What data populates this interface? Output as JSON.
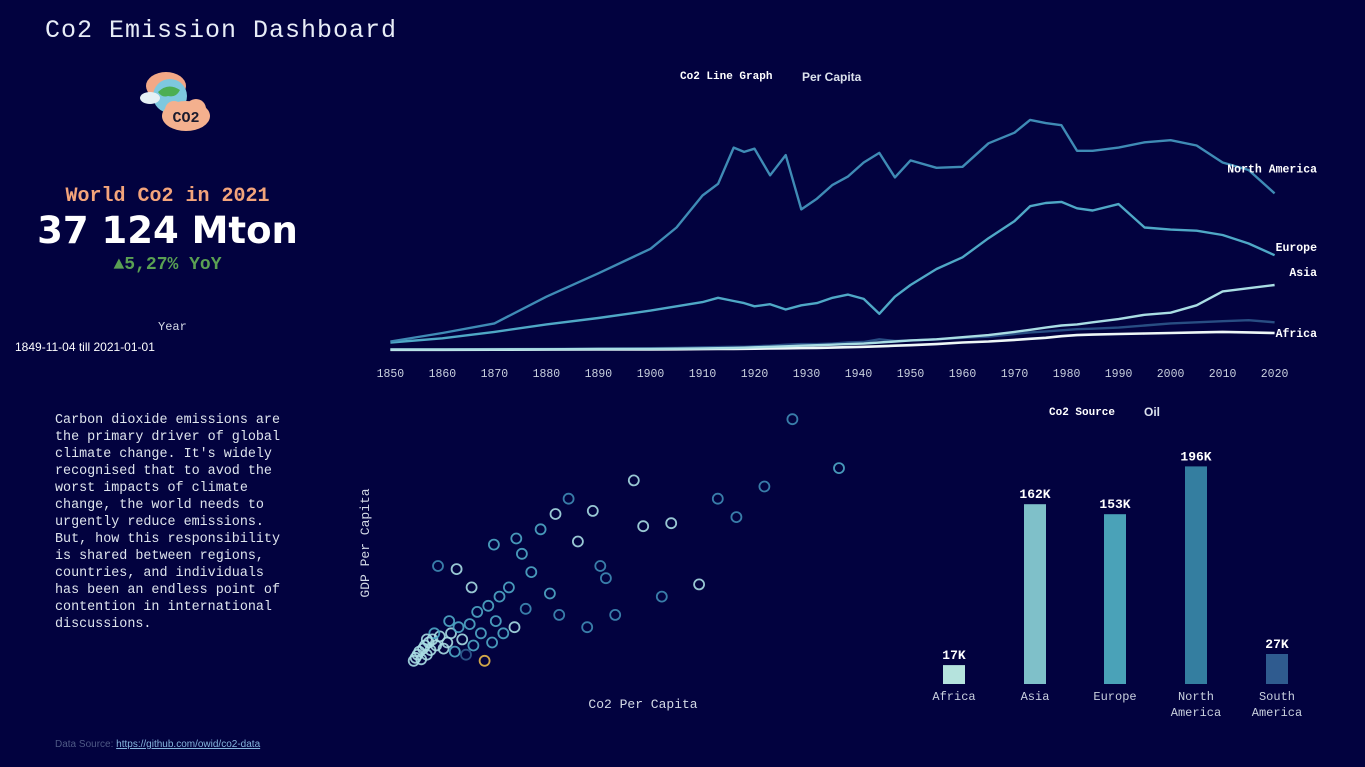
{
  "dashboard": {
    "title": "Co2 Emission Dashboard"
  },
  "kpi": {
    "label": "World Co2 in 2021",
    "value": "37 124 Mton",
    "yoy": "▲5,27% YoY"
  },
  "filter": {
    "label": "Year",
    "range": "1849-11-04 till 2021-01-01"
  },
  "logo": {
    "icon": "earth-co2-cloud-icon",
    "text": "CO2"
  },
  "description": "Carbon dioxide emissions are the primary driver of global climate change. It's widely recognised that to avod the worst impacts of climate change, the world needs to urgently reduce emissions. But, how this responsibility is shared between regions, countries, and individuals has been an endless point of contention in international discussions.",
  "footer": {
    "prefix": "Data Source: ",
    "link": "https://github.com/owid/co2-data"
  },
  "colors": {
    "background": "#02023f",
    "north_america": "#3f8bb5",
    "europe": "#4fa8c6",
    "asia": "#a9dde3",
    "africa": "#eef7f7",
    "south_america": "#2f5b8f",
    "kpi_label": "#f3a47b",
    "kpi_yoy": "#5aa053"
  },
  "chart_data": [
    {
      "type": "line",
      "title": "Co2 Line Graph",
      "subtitle": "Per Capita",
      "x": [
        1850,
        1860,
        1870,
        1880,
        1890,
        1900,
        1905,
        1910,
        1913,
        1916,
        1918,
        1920,
        1923,
        1926,
        1929,
        1932,
        1935,
        1938,
        1941,
        1944,
        1947,
        1950,
        1955,
        1960,
        1965,
        1970,
        1973,
        1976,
        1979,
        1982,
        1985,
        1990,
        1995,
        2000,
        2005,
        2010,
        2015,
        2020
      ],
      "xticks": [
        1850,
        1860,
        1870,
        1880,
        1890,
        1900,
        1910,
        1920,
        1930,
        1940,
        1950,
        1960,
        1970,
        1980,
        1990,
        2000,
        2010,
        2020
      ],
      "xlim": [
        1848,
        2022
      ],
      "ylim": [
        0,
        23
      ],
      "series": [
        {
          "name": "North America",
          "color": "#3f8bb5",
          "values": [
            0.8,
            1.6,
            2.5,
            5,
            7.2,
            9.5,
            11.5,
            14.5,
            15.6,
            19,
            18.6,
            18.9,
            16.4,
            18.3,
            13.2,
            14.2,
            15.5,
            16.3,
            17.6,
            18.5,
            16.2,
            17.8,
            17.1,
            17.2,
            19.4,
            20.4,
            21.6,
            21.3,
            21.1,
            18.7,
            18.7,
            19,
            19.5,
            19.7,
            19.2,
            17.6,
            16.9,
            14.7
          ]
        },
        {
          "name": "Europe",
          "color": "#4fa8c6",
          "values": [
            0.7,
            1.1,
            1.7,
            2.4,
            3,
            3.7,
            4.1,
            4.5,
            4.9,
            4.6,
            4.4,
            4.1,
            4.3,
            3.8,
            4.2,
            4.4,
            4.9,
            5.2,
            4.8,
            3.4,
            5,
            6.1,
            7.6,
            8.7,
            10.5,
            12.1,
            13.5,
            13.8,
            13.9,
            13.3,
            13.1,
            13.7,
            11.5,
            11.3,
            11.2,
            10.8,
            10,
            8.9
          ]
        },
        {
          "name": "Asia",
          "color": "#a9dde3",
          "values": [
            0.05,
            0.05,
            0.06,
            0.07,
            0.09,
            0.1,
            0.12,
            0.15,
            0.17,
            0.2,
            0.22,
            0.25,
            0.3,
            0.35,
            0.4,
            0.45,
            0.5,
            0.55,
            0.6,
            0.7,
            0.8,
            0.9,
            1,
            1.2,
            1.4,
            1.7,
            1.9,
            2.1,
            2.3,
            2.4,
            2.6,
            2.9,
            3.3,
            3.5,
            4.2,
            5.5,
            5.8,
            6.1
          ]
        },
        {
          "name": "Africa",
          "color": "#eef7f7",
          "values": [
            0.02,
            0.02,
            0.03,
            0.04,
            0.05,
            0.06,
            0.07,
            0.08,
            0.09,
            0.1,
            0.11,
            0.12,
            0.14,
            0.16,
            0.18,
            0.2,
            0.23,
            0.26,
            0.3,
            0.35,
            0.4,
            0.45,
            0.55,
            0.7,
            0.8,
            0.95,
            1.05,
            1.15,
            1.3,
            1.4,
            1.45,
            1.5,
            1.55,
            1.6,
            1.65,
            1.7,
            1.65,
            1.6
          ]
        },
        {
          "name": "South America",
          "color": "#2f5b8f",
          "label_shown": false,
          "values": [
            0.05,
            0.06,
            0.08,
            0.1,
            0.13,
            0.17,
            0.2,
            0.25,
            0.27,
            0.3,
            0.3,
            0.35,
            0.4,
            0.5,
            0.55,
            0.55,
            0.6,
            0.7,
            0.75,
            1.0,
            0.85,
            0.9,
            1,
            1.15,
            1.25,
            1.5,
            1.65,
            1.75,
            1.85,
            1.95,
            2,
            2.1,
            2.3,
            2.5,
            2.6,
            2.7,
            2.8,
            2.6
          ]
        }
      ]
    },
    {
      "type": "scatter",
      "xlabel": "Co2 Per Capita",
      "ylabel": "GDP Per Capita",
      "xlim": [
        0,
        26
      ],
      "ylim": [
        0,
        85
      ],
      "points": [
        [
          0.2,
          3,
          "#a9dde3"
        ],
        [
          0.3,
          4,
          "#a9dde3"
        ],
        [
          0.4,
          5,
          "#a9dde3"
        ],
        [
          0.5,
          6,
          "#a9dde3"
        ],
        [
          0.6,
          3.5,
          "#a9dde3"
        ],
        [
          0.7,
          7,
          "#a9dde3"
        ],
        [
          0.8,
          8,
          "#a9dde3"
        ],
        [
          0.9,
          5,
          "#a9dde3"
        ],
        [
          1.0,
          9,
          "#a9dde3"
        ],
        [
          1.1,
          6.5,
          "#a9dde3"
        ],
        [
          1.2,
          10,
          "#a9dde3"
        ],
        [
          1.4,
          8,
          "#a9dde3"
        ],
        [
          1.6,
          11,
          "#a9dde3"
        ],
        [
          1.8,
          7,
          "#a9dde3"
        ],
        [
          2.0,
          9,
          "#a9dde3"
        ],
        [
          2.2,
          12,
          "#a9dde3"
        ],
        [
          2.4,
          6,
          "#4fa8c6"
        ],
        [
          2.6,
          14,
          "#4fa8c6"
        ],
        [
          2.8,
          10,
          "#a9dde3"
        ],
        [
          3.0,
          5,
          "#2f5b8f"
        ],
        [
          3.2,
          15,
          "#4fa8c6"
        ],
        [
          3.4,
          8,
          "#4fa8c6"
        ],
        [
          3.6,
          19,
          "#4fa8c6"
        ],
        [
          3.8,
          12,
          "#4fa8c6"
        ],
        [
          4.0,
          3,
          "#e8b94a"
        ],
        [
          4.2,
          21,
          "#4fa8c6"
        ],
        [
          4.4,
          9,
          "#4fa8c6"
        ],
        [
          4.6,
          16,
          "#4fa8c6"
        ],
        [
          4.8,
          24,
          "#4fa8c6"
        ],
        [
          5.0,
          12,
          "#4fa8c6"
        ],
        [
          5.3,
          27,
          "#4fa8c6"
        ],
        [
          5.6,
          14,
          "#a9dde3"
        ],
        [
          6.0,
          38,
          "#4fa8c6"
        ],
        [
          6.5,
          32,
          "#4fa8c6"
        ],
        [
          7.0,
          46,
          "#4fa8c6"
        ],
        [
          7.5,
          25,
          "#4fa8c6"
        ],
        [
          8.0,
          18,
          "#3f8bb5"
        ],
        [
          8.5,
          56,
          "#3f8bb5"
        ],
        [
          9.0,
          42,
          "#a9dde3"
        ],
        [
          9.5,
          14,
          "#3f8bb5"
        ],
        [
          10.5,
          30,
          "#3f8bb5"
        ],
        [
          11.0,
          18,
          "#3f8bb5"
        ],
        [
          12.0,
          62,
          "#a9dde3"
        ],
        [
          12.5,
          47,
          "#a9dde3"
        ],
        [
          13.5,
          24,
          "#3f8bb5"
        ],
        [
          14.0,
          48,
          "#a9dde3"
        ],
        [
          15.5,
          28,
          "#a9dde3"
        ],
        [
          16.5,
          56,
          "#3f8bb5"
        ],
        [
          17.5,
          50,
          "#3f8bb5"
        ],
        [
          19.0,
          60,
          "#3f8bb5"
        ],
        [
          20.5,
          82,
          "#3f8bb5"
        ],
        [
          23.0,
          66,
          "#4fa8c6"
        ],
        [
          1.5,
          34,
          "#3f8bb5"
        ],
        [
          2.5,
          33,
          "#a9dde3"
        ],
        [
          3.3,
          27,
          "#a9dde3"
        ],
        [
          4.5,
          41,
          "#4fa8c6"
        ],
        [
          5.7,
          43,
          "#4fa8c6"
        ],
        [
          7.8,
          51,
          "#a9dde3"
        ],
        [
          9.8,
          52,
          "#a9dde3"
        ],
        [
          2.1,
          16,
          "#4fa8c6"
        ],
        [
          1.3,
          12,
          "#4fa8c6"
        ],
        [
          0.9,
          10,
          "#a9dde3"
        ],
        [
          6.2,
          20,
          "#3f8bb5"
        ],
        [
          10.2,
          34,
          "#3f8bb5"
        ]
      ]
    },
    {
      "type": "bar",
      "title": "Co2 Source",
      "subtitle": "Oil",
      "categories": [
        "Africa",
        "Asia",
        "Europe",
        "North America",
        "South America"
      ],
      "category_lines": [
        [
          "Africa"
        ],
        [
          "Asia"
        ],
        [
          "Europe"
        ],
        [
          "North",
          "America"
        ],
        [
          "South",
          "America"
        ]
      ],
      "values": [
        17,
        162,
        153,
        196,
        27
      ],
      "value_labels": [
        "17K",
        "162K",
        "153K",
        "196K",
        "27K"
      ],
      "colors": [
        "#b5e3dd",
        "#7fc0c9",
        "#4aa2b8",
        "#347ea0",
        "#2f5b8f"
      ],
      "ylim": [
        0,
        200
      ]
    }
  ]
}
